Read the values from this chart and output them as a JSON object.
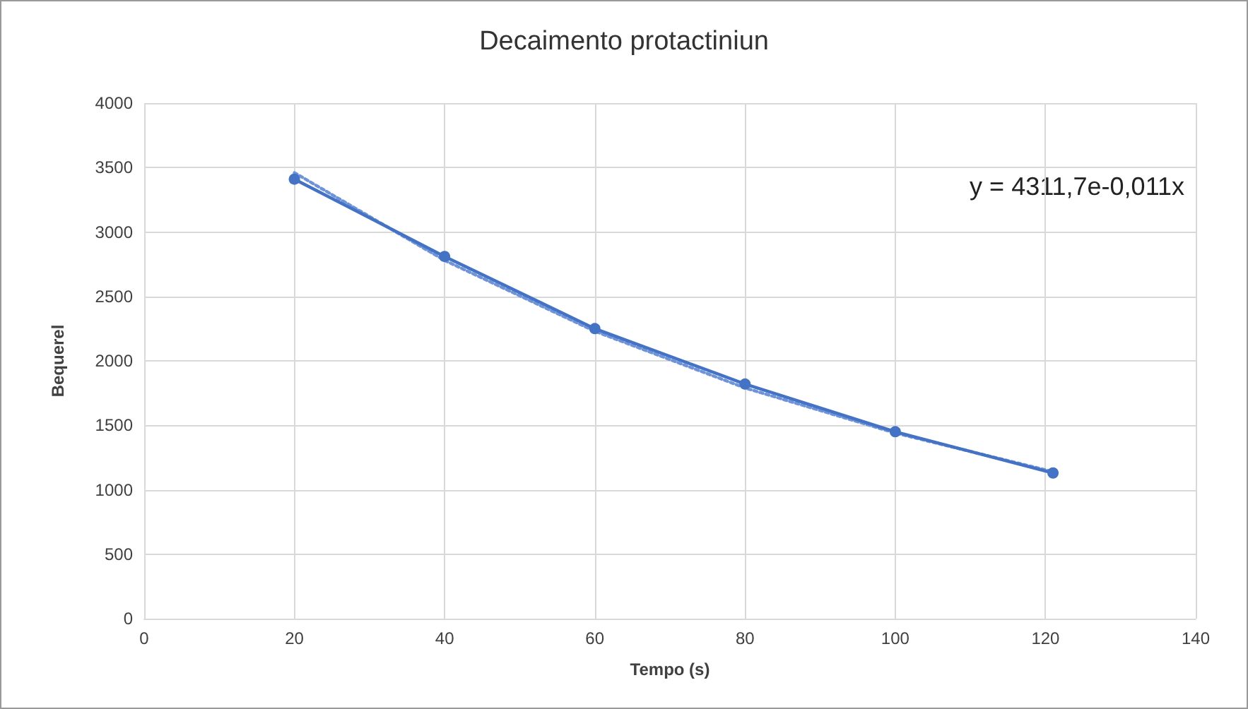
{
  "chart_data": {
    "type": "line",
    "title": "Decaimento protactiniun",
    "xlabel": "Tempo (s)",
    "ylabel": "Bequerel",
    "x": [
      20,
      40,
      60,
      80,
      100,
      121
    ],
    "series": [
      {
        "color": "#4472c4",
        "values": [
          3410,
          2810,
          2250,
          1820,
          1450,
          1130
        ],
        "marker": "circle",
        "line_style": "solid"
      },
      {
        "type": "line",
        "color": "#6f93d8",
        "x": [
          20,
          40,
          60,
          80,
          100,
          121
        ],
        "values": [
          3460,
          2780,
          2230,
          1790,
          1440,
          1140
        ],
        "marker": "none",
        "line_style": "dotted"
      }
    ],
    "annotations": [
      "y = 4311,7e-0,011x"
    ],
    "xlim": [
      0,
      140
    ],
    "xticks": [
      0,
      20,
      40,
      60,
      80,
      100,
      120,
      140
    ],
    "ylim": [
      0,
      4000
    ],
    "yticks": [
      0,
      500,
      1000,
      1500,
      2000,
      2500,
      3000,
      3500,
      4000
    ],
    "grid": true
  }
}
